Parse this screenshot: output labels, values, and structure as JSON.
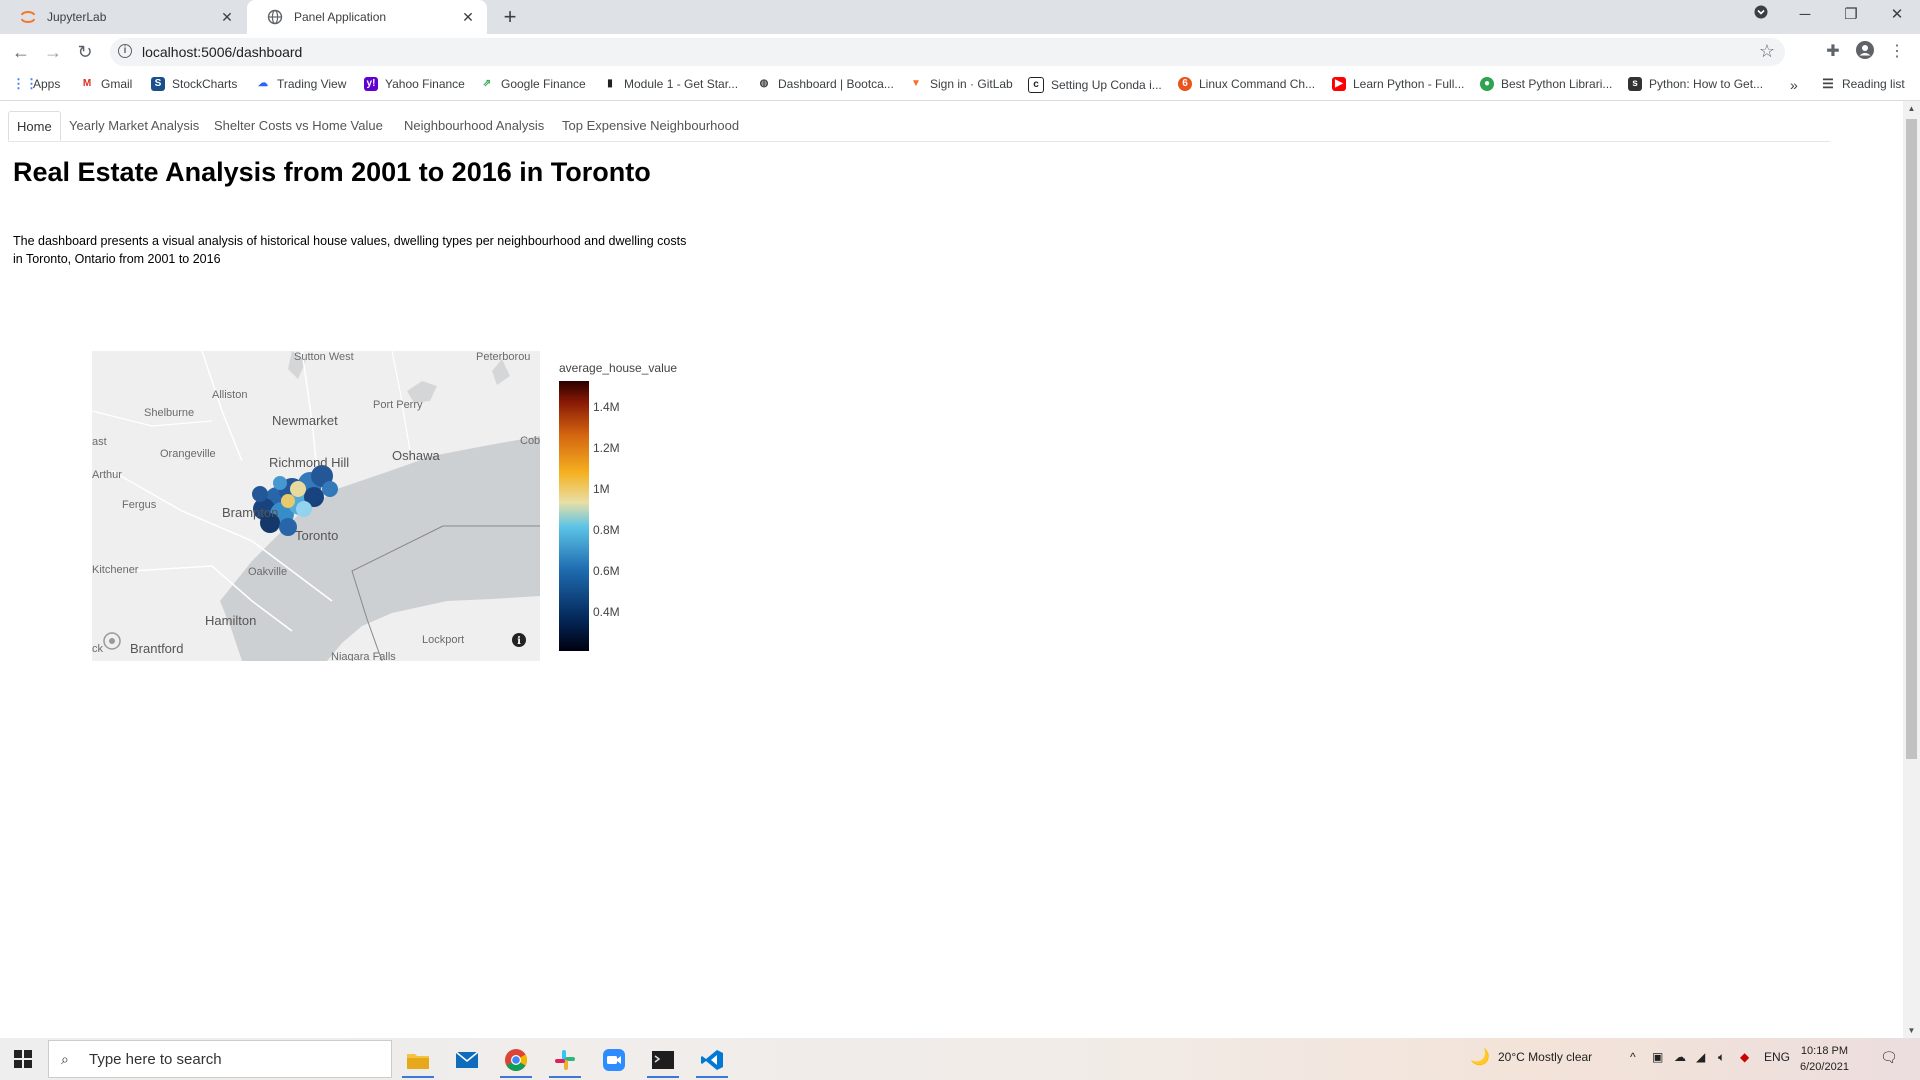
{
  "browser": {
    "tabs": [
      {
        "title": "JupyterLab",
        "active": false
      },
      {
        "title": "Panel Application",
        "active": true
      }
    ],
    "url": "localhost:5006/dashboard",
    "bookmarks": [
      "Apps",
      "Gmail",
      "StockCharts",
      "Trading View",
      "Yahoo Finance",
      "Google Finance",
      "Module 1 - Get Star...",
      "Dashboard | Bootca...",
      "Sign in · GitLab",
      "Setting Up Conda i...",
      "Linux Command Ch...",
      "Learn Python - Full...",
      "Best Python Librari...",
      "Python: How to Get..."
    ],
    "overflow": "»",
    "reading_list": "Reading list"
  },
  "page": {
    "tabs": [
      "Home",
      "Yearly Market Analysis",
      "Shelter Costs vs Home Value",
      "Neighbourhood Analysis",
      "Top Expensive Neighbourhood"
    ],
    "active_tab": "Home",
    "title": "Real Estate Analysis from 2001 to 2016 in Toronto",
    "description": "The dashboard presents a visual analysis of historical house values, dwelling types per neighbourhood and dwelling costs in Toronto, Ontario from 2001 to 2016"
  },
  "map": {
    "place_labels": [
      "Sutton West",
      "Peterborou",
      "Alliston",
      "Port Perry",
      "Shelburne",
      "Newmarket",
      "Cobo",
      "Orangeville",
      "Richmond Hill",
      "Oshawa",
      "Arthur",
      "Brampton",
      "Toronto",
      "Fergus",
      "Kitchener",
      "Oakville",
      "Hamilton",
      "Lockport",
      "Brantford",
      "Niagara Falls",
      "ast",
      "ck"
    ],
    "colorbar": {
      "title": "average_house_value",
      "ticks": [
        "1.4M",
        "1.2M",
        "1M",
        "0.8M",
        "0.6M",
        "0.4M"
      ],
      "colors": [
        "#000010",
        "#04285a",
        "#1f6bb0",
        "#5cc4e6",
        "#e8dfa6",
        "#f5b120",
        "#d46510",
        "#8a1a05",
        "#2a0000"
      ]
    }
  },
  "taskbar": {
    "search_placeholder": "Type here to search",
    "weather": "20°C  Mostly clear",
    "language": "ENG",
    "time": "10:18 PM",
    "date": "6/20/2021"
  }
}
